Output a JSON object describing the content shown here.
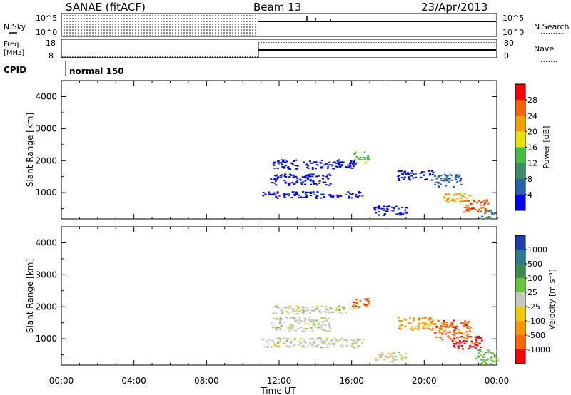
{
  "header": {
    "station": "SANAE (fitACF)",
    "beam": "Beam 13",
    "date": "23/Apr/2013"
  },
  "status_panel": {
    "nsky_label": "N.Sky",
    "nsearch_label": "N.Search",
    "nsky_ticks": [
      "10^5",
      "10^0"
    ],
    "nsearch_ticks": [
      "10^5",
      "10^0"
    ],
    "freq_label": "Freq.",
    "freq_unit": "[MHz]",
    "freq_ticks": [
      "18",
      "8"
    ],
    "nave_label": "Nave",
    "nave_ticks": [
      "80",
      "0"
    ],
    "cpid_label": "CPID",
    "cpid_value": "normal 150",
    "mode_change_hour": 10.85
  },
  "colors": {
    "power": [
      "#0000ff",
      "#2860b0",
      "#3c8c64",
      "#40c040",
      "#f0e000",
      "#f0a000",
      "#ff6000",
      "#ff0000"
    ],
    "velocity": [
      "#1e3cb4",
      "#287896",
      "#3c8c50",
      "#64c832",
      "#c8c8c0",
      "#f0c800",
      "#ff9600",
      "#ff6400",
      "#ff0000"
    ]
  },
  "chart_data": [
    {
      "type": "heatmap",
      "name": "power",
      "ylabel": "Slant Range [km]",
      "yticks": [
        "1000",
        "2000",
        "3000",
        "4000"
      ],
      "xlim": [
        0,
        24
      ],
      "ylim": [
        180,
        4500
      ],
      "colorbar_label": "Power [dB]",
      "colorbar_ticks": [
        "4",
        "8",
        "12",
        "16",
        "20",
        "24",
        "28"
      ],
      "regions": [
        {
          "x": [
            10.9,
            16.6
          ],
          "y": [
            850,
            1050
          ],
          "level": 0
        },
        {
          "x": [
            11.5,
            14.8
          ],
          "y": [
            1250,
            1600
          ],
          "level": 0
        },
        {
          "x": [
            11.6,
            16.2
          ],
          "y": [
            1750,
            2050
          ],
          "level": 0
        },
        {
          "x": [
            16.0,
            16.9
          ],
          "y": [
            1950,
            2300
          ],
          "level": 3
        },
        {
          "x": [
            18.5,
            20.5
          ],
          "y": [
            1400,
            1700
          ],
          "level": 0
        },
        {
          "x": [
            20.5,
            22.0
          ],
          "y": [
            1200,
            1600
          ],
          "level": 1
        },
        {
          "x": [
            21.0,
            22.5
          ],
          "y": [
            700,
            1000
          ],
          "level": 5
        },
        {
          "x": [
            22.0,
            23.5
          ],
          "y": [
            400,
            800
          ],
          "level": 6
        },
        {
          "x": [
            17.2,
            19.0
          ],
          "y": [
            300,
            600
          ],
          "level": 0
        },
        {
          "x": [
            23.0,
            24.0
          ],
          "y": [
            200,
            500
          ],
          "level": 2
        }
      ]
    },
    {
      "type": "heatmap",
      "name": "velocity",
      "ylabel": "Slant Range [km]",
      "yticks": [
        "1000",
        "2000",
        "3000",
        "4000"
      ],
      "xlim": [
        0,
        24
      ],
      "ylim": [
        180,
        4500
      ],
      "xlabel": "Time UT",
      "xticks": [
        "00:00",
        "04:00",
        "08:00",
        "12:00",
        "16:00",
        "20:00",
        "00:00"
      ],
      "colorbar_label": "Velocity [m s⁻¹]",
      "colorbar_ticks": [
        "1000",
        "500",
        "100",
        "25",
        "-25",
        "-100",
        "-500",
        "-1000"
      ],
      "regions": [
        {
          "x": [
            10.9,
            16.6
          ],
          "y": [
            750,
            1050
          ],
          "level": 4
        },
        {
          "x": [
            11.5,
            14.8
          ],
          "y": [
            1250,
            1700
          ],
          "level": 4
        },
        {
          "x": [
            11.6,
            16.2
          ],
          "y": [
            1800,
            2050
          ],
          "level": 4
        },
        {
          "x": [
            16.0,
            16.9
          ],
          "y": [
            1950,
            2300
          ],
          "level": 7
        },
        {
          "x": [
            18.5,
            20.5
          ],
          "y": [
            1300,
            1700
          ],
          "level": 6
        },
        {
          "x": [
            20.5,
            22.5
          ],
          "y": [
            1000,
            1600
          ],
          "level": 7
        },
        {
          "x": [
            21.5,
            23.2
          ],
          "y": [
            700,
            1100
          ],
          "level": 8
        },
        {
          "x": [
            22.8,
            24.0
          ],
          "y": [
            200,
            700
          ],
          "level": 3
        },
        {
          "x": [
            17.2,
            19.0
          ],
          "y": [
            300,
            600
          ],
          "level": 4
        }
      ]
    }
  ]
}
